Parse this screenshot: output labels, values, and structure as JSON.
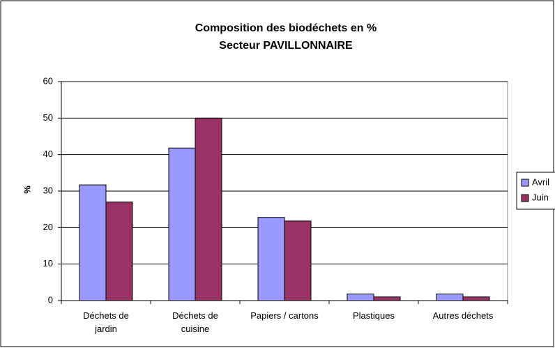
{
  "chart_data": {
    "type": "bar",
    "title": "Composition des biodéchets en %",
    "subtitle": "Secteur  PAVILLONNAIRE",
    "y_label": "%",
    "categories": [
      "Déchets de jardin",
      "Déchets de cuisine",
      "Papiers / cartons",
      "Plastiques",
      "Autres déchets"
    ],
    "series": [
      {
        "name": "Avril",
        "color": "#9999ff",
        "values": [
          31.7,
          41.8,
          22.8,
          1.8,
          1.8
        ]
      },
      {
        "name": "Juin",
        "color": "#993366",
        "values": [
          27,
          50,
          21.8,
          1,
          1
        ]
      }
    ],
    "ylim": [
      0,
      60
    ],
    "yticks": [
      0,
      10,
      20,
      30,
      40,
      50,
      60
    ],
    "grid": true,
    "legend": "right"
  }
}
